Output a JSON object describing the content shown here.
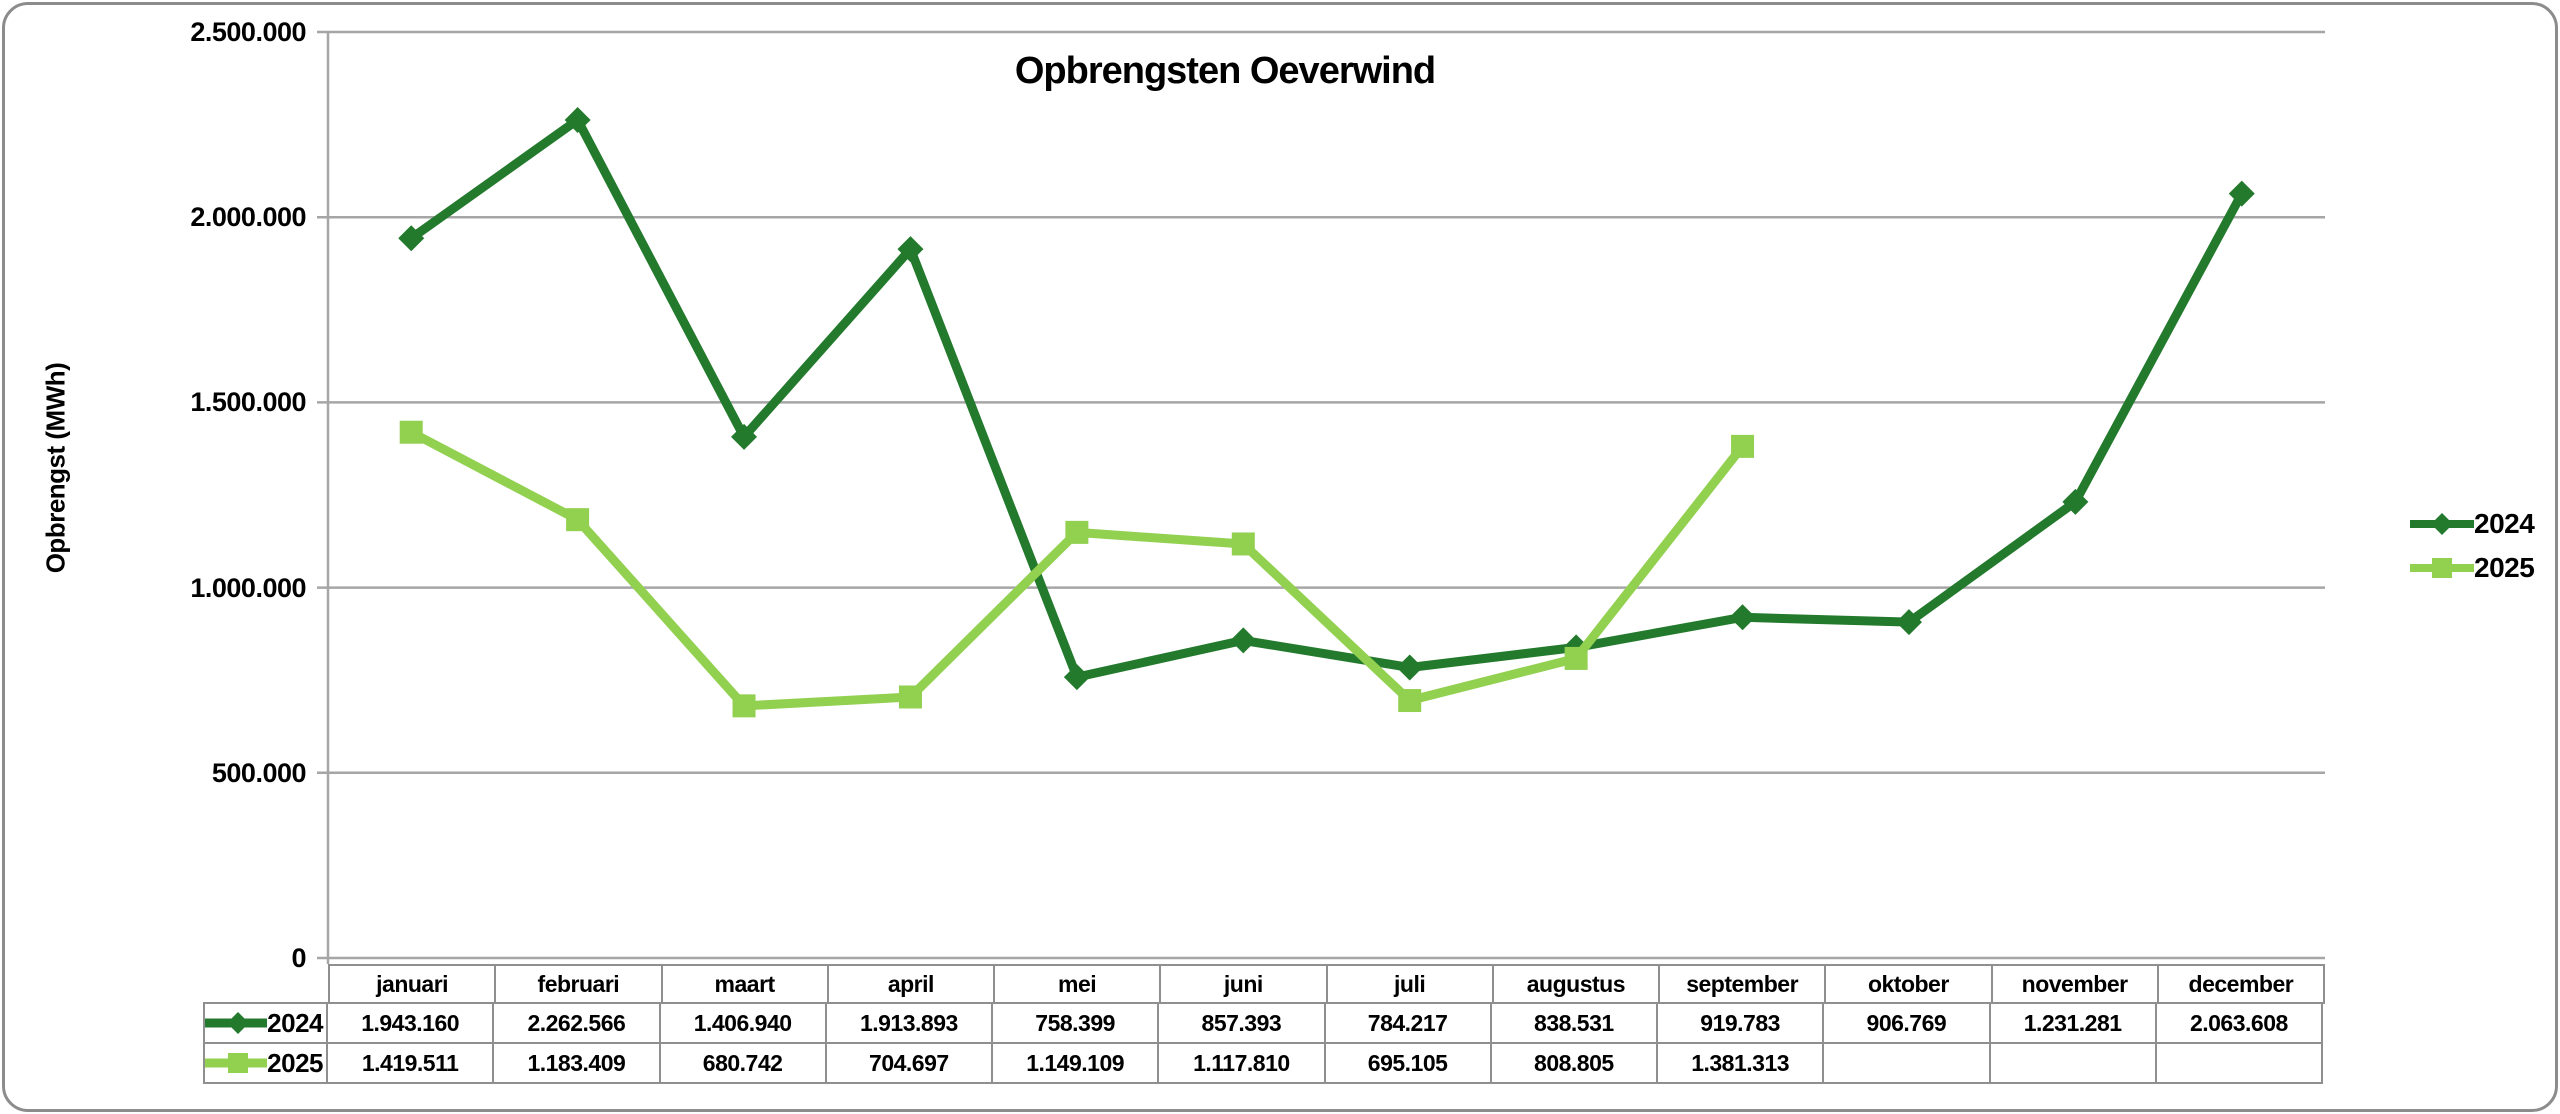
{
  "frame": {
    "border_color": "#8c8c8c"
  },
  "chart_data": {
    "type": "line",
    "title": "Opbrengsten Oeverwind",
    "xlabel": "",
    "ylabel": "Opbrengst (MWh)",
    "categories": [
      "januari",
      "februari",
      "maart",
      "april",
      "mei",
      "juni",
      "juli",
      "augustus",
      "september",
      "oktober",
      "november",
      "december"
    ],
    "series": [
      {
        "name": "2024",
        "marker": "diamond",
        "color": "#237a2c",
        "values": [
          1943160,
          2262566,
          1406940,
          1913893,
          758399,
          857393,
          784217,
          838531,
          919783,
          906769,
          1231281,
          2063608
        ],
        "labels": [
          "1.943.160",
          "2.262.566",
          "1.406.940",
          "1.913.893",
          "758.399",
          "857.393",
          "784.217",
          "838.531",
          "919.783",
          "906.769",
          "1.231.281",
          "2.063.608"
        ]
      },
      {
        "name": "2025",
        "marker": "square",
        "color": "#92d050",
        "values": [
          1419511,
          1183409,
          680742,
          704697,
          1149109,
          1117810,
          695105,
          808805,
          1381313,
          null,
          null,
          null
        ],
        "labels": [
          "1.419.511",
          "1.183.409",
          "680.742",
          "704.697",
          "1.149.109",
          "1.117.810",
          "695.105",
          "808.805",
          "1.381.313",
          "",
          "",
          ""
        ]
      }
    ],
    "ylim": [
      0,
      2500000
    ],
    "ytick_step": 500000,
    "ytick_labels": [
      "0",
      "500.000",
      "1.000.000",
      "1.500.000",
      "2.000.000",
      "2.500.000"
    ],
    "grid": true,
    "legend_position": "right",
    "data_table": true,
    "colors": {
      "gridline": "#a6a6a6",
      "axis": "#8f8f8f",
      "table_border": "#8f8f8f",
      "text": "#000000",
      "background": "#ffffff"
    }
  }
}
